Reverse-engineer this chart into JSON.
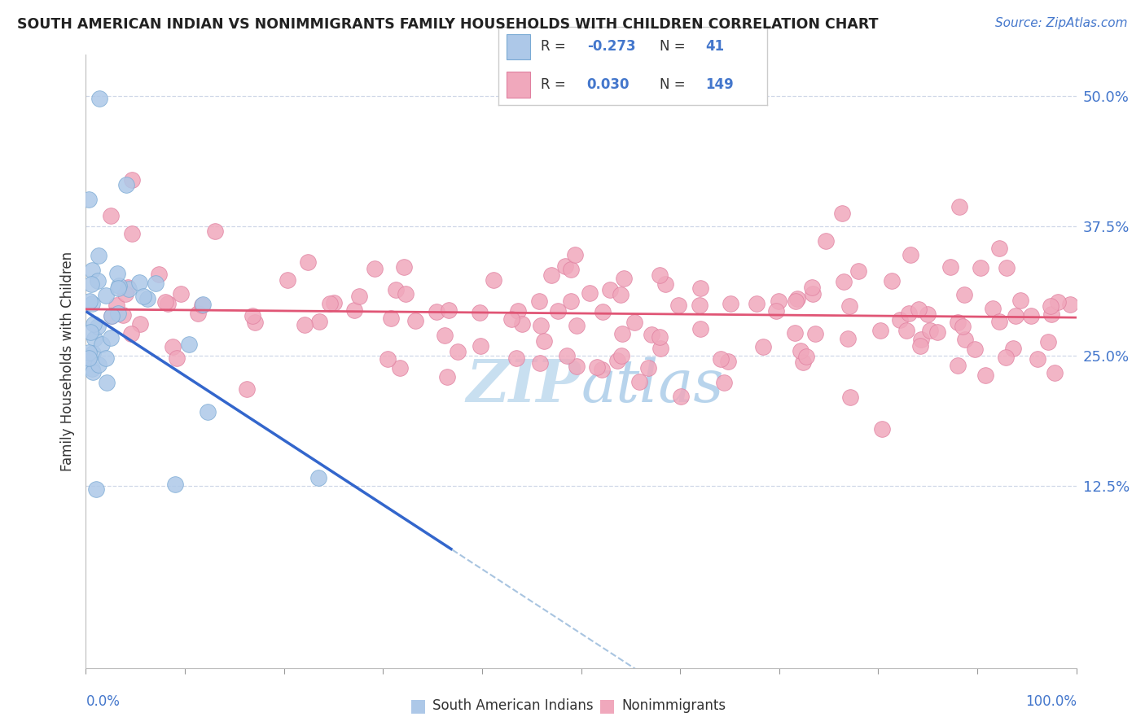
{
  "title": "SOUTH AMERICAN INDIAN VS NONIMMIGRANTS FAMILY HOUSEHOLDS WITH CHILDREN CORRELATION CHART",
  "source": "Source: ZipAtlas.com",
  "ylabel": "Family Households with Children",
  "ytick_vals": [
    0.0,
    0.125,
    0.25,
    0.375,
    0.5
  ],
  "ytick_labels": [
    "",
    "12.5%",
    "25.0%",
    "37.5%",
    "50.0%"
  ],
  "xlim": [
    0.0,
    1.0
  ],
  "ylim": [
    -0.05,
    0.54
  ],
  "blue_R": -0.273,
  "blue_N": 41,
  "pink_R": 0.03,
  "pink_N": 149,
  "blue_dot_color": "#adc8e8",
  "blue_dot_edge": "#7aaad4",
  "pink_dot_color": "#f0a8bc",
  "pink_dot_edge": "#e080a0",
  "blue_line_color": "#3366cc",
  "pink_line_color": "#e05575",
  "dash_color": "#a8c4e0",
  "grid_color": "#d0d8e8",
  "bg_color": "#ffffff",
  "legend_label_blue": "South American Indians",
  "legend_label_pink": "Nonimmigrants",
  "title_color": "#222222",
  "source_color": "#4477cc",
  "axis_label_color": "#4477cc",
  "text_color": "#333333",
  "watermark_color": "#c8dff0",
  "dot_size": 200,
  "blue_line_y0": 0.293,
  "blue_line_slope": -0.62,
  "pink_line_y0": 0.295,
  "pink_line_slope": -0.008
}
